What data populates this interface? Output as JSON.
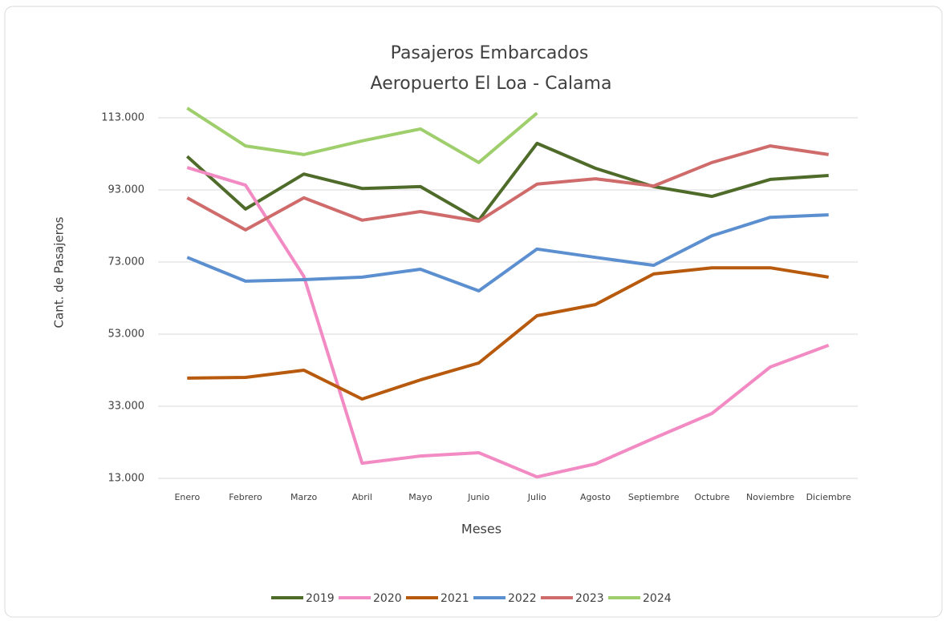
{
  "chart_data": {
    "type": "line",
    "title": "Pasajeros Embarcados",
    "subtitle": "Aeropuerto El Loa - Calama",
    "x_label": "Meses",
    "y_label": "Cant. de Pasajeros",
    "categories": [
      "Enero",
      "Febrero",
      "Marzo",
      "Abril",
      "Mayo",
      "Junio",
      "Julio",
      "Agosto",
      "Septiembre",
      "Octubre",
      "Noviembre",
      "Diciembre"
    ],
    "series": [
      {
        "name": "2019",
        "color": "#4e6b2a",
        "values": [
          102300,
          87700,
          97400,
          93400,
          93900,
          84600,
          105900,
          99000,
          93900,
          91200,
          95900,
          97000
        ]
      },
      {
        "name": "2020",
        "color": "#f28ac3",
        "values": [
          99200,
          94300,
          69000,
          17200,
          19200,
          20100,
          13400,
          17000,
          24100,
          31000,
          43900,
          49900
        ]
      },
      {
        "name": "2021",
        "color": "#b85a0d",
        "values": [
          40800,
          41000,
          43000,
          35000,
          40300,
          45000,
          58100,
          61200,
          69700,
          71400,
          71400,
          68800
        ]
      },
      {
        "name": "2022",
        "color": "#5b8fd0",
        "values": [
          74300,
          67700,
          68100,
          68800,
          71000,
          65000,
          76600,
          74300,
          72100,
          80300,
          85400,
          86100
        ]
      },
      {
        "name": "2023",
        "color": "#cf6b6b",
        "values": [
          90800,
          81900,
          90800,
          84600,
          87000,
          84300,
          94600,
          96100,
          94100,
          100600,
          105200,
          102800
        ]
      },
      {
        "name": "2024",
        "color": "#9fce6c",
        "values": [
          115700,
          105200,
          102800,
          106600,
          109900,
          100600,
          114300,
          null,
          null,
          null,
          null,
          null
        ]
      }
    ],
    "ylim": [
      13000,
      116000
    ],
    "yticks": [
      {
        "value": 13000,
        "label": "13.000"
      },
      {
        "value": 33000,
        "label": "33.000"
      },
      {
        "value": 53000,
        "label": "53.000"
      },
      {
        "value": 73000,
        "label": "73.000"
      },
      {
        "value": 93000,
        "label": "93.000"
      },
      {
        "value": 113000,
        "label": "113.000"
      }
    ],
    "grid": true,
    "legend": "bottom"
  }
}
